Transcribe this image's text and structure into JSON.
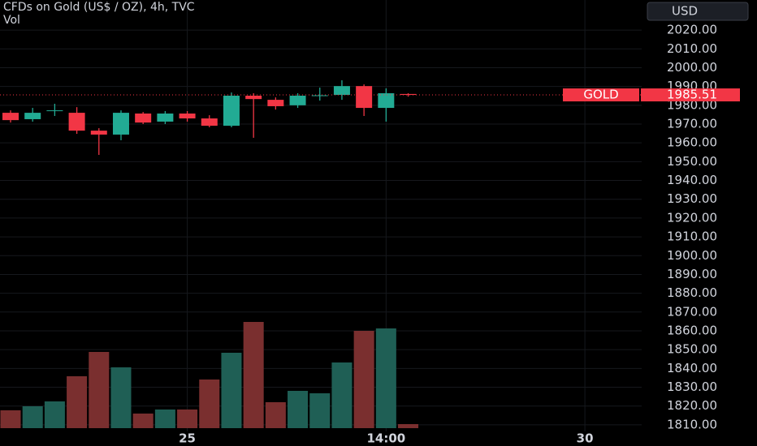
{
  "chart_data": {
    "type": "candlestick",
    "title": "CFDs on Gold (US$ / OZ), 4h, TVC",
    "volume_title": "Vol",
    "currency": "USD",
    "up_color": "#22ab94",
    "down_color": "#f23645",
    "volume_up_color": "#1f5f55",
    "volume_down_color": "#7a2f2f",
    "open": [
      1976,
      1972.6,
      1977,
      1976,
      1966.5,
      1964.4,
      1975.6,
      1971.3,
      1975.6,
      1973,
      1969.1,
      1985.1,
      1982.9,
      1980,
      1985,
      1985.5,
      1990.2,
      1978.6,
      1986
    ],
    "high": [
      1977.3,
      1978.6,
      1980.8,
      1979,
      1967.8,
      1977.3,
      1976.4,
      1976.9,
      1976.9,
      1974.7,
      1986.8,
      1986.4,
      1984.2,
      1986.4,
      1989.4,
      1993.3,
      1991.1,
      1989,
      1986.4
    ],
    "low": [
      1970.8,
      1971.3,
      1974.3,
      1964.8,
      1953.6,
      1961.4,
      1970,
      1970,
      1971.3,
      1968.3,
      1968.3,
      1962.7,
      1977.7,
      1978.6,
      1982.5,
      1982.9,
      1974.3,
      1971.3,
      1984.6
    ],
    "close": [
      1972.1,
      1976,
      1977.3,
      1966.5,
      1964.4,
      1976,
      1970.8,
      1975.6,
      1973,
      1969.1,
      1985.1,
      1983.3,
      1979.5,
      1985.1,
      1985.3,
      1990.2,
      1978.6,
      1986.4,
      1985.51
    ],
    "volume": [
      22,
      27,
      33,
      64,
      94,
      75,
      18,
      23,
      23,
      60,
      93,
      131,
      32,
      46,
      43,
      81,
      120,
      123,
      5
    ],
    "volume_lim": [
      0,
      140
    ],
    "xlim": [
      -0.478,
      28.57
    ],
    "xticks": [
      {
        "value": 8,
        "label": "25"
      },
      {
        "value": 17,
        "label": "14:00"
      },
      {
        "value": 26,
        "label": "30"
      }
    ],
    "ylim": [
      1806.5,
      2036
    ],
    "yticks": [
      {
        "value": 2020,
        "label": "2020.00"
      },
      {
        "value": 2010,
        "label": "2010.00"
      },
      {
        "value": 2000,
        "label": "2000.00"
      },
      {
        "value": 1990,
        "label": "1990.00"
      },
      {
        "value": 1980,
        "label": "1980.00"
      },
      {
        "value": 1970,
        "label": "1970.00"
      },
      {
        "value": 1960,
        "label": "1960.00"
      },
      {
        "value": 1950,
        "label": "1950.00"
      },
      {
        "value": 1940,
        "label": "1940.00"
      },
      {
        "value": 1930,
        "label": "1930.00"
      },
      {
        "value": 1920,
        "label": "1920.00"
      },
      {
        "value": 1910,
        "label": "1910.00"
      },
      {
        "value": 1900,
        "label": "1900.00"
      },
      {
        "value": 1890,
        "label": "1890.00"
      },
      {
        "value": 1880,
        "label": "1880.00"
      },
      {
        "value": 1870,
        "label": "1870.00"
      },
      {
        "value": 1860,
        "label": "1860.00"
      },
      {
        "value": 1850,
        "label": "1850.00"
      },
      {
        "value": 1840,
        "label": "1840.00"
      },
      {
        "value": 1830,
        "label": "1830.00"
      },
      {
        "value": 1820,
        "label": "1820.00"
      },
      {
        "value": 1810,
        "label": "1810.00"
      }
    ],
    "last_price": {
      "value": 1985.51,
      "label": "1985.51"
    },
    "last_price_name": "GOLD",
    "grid": true
  }
}
